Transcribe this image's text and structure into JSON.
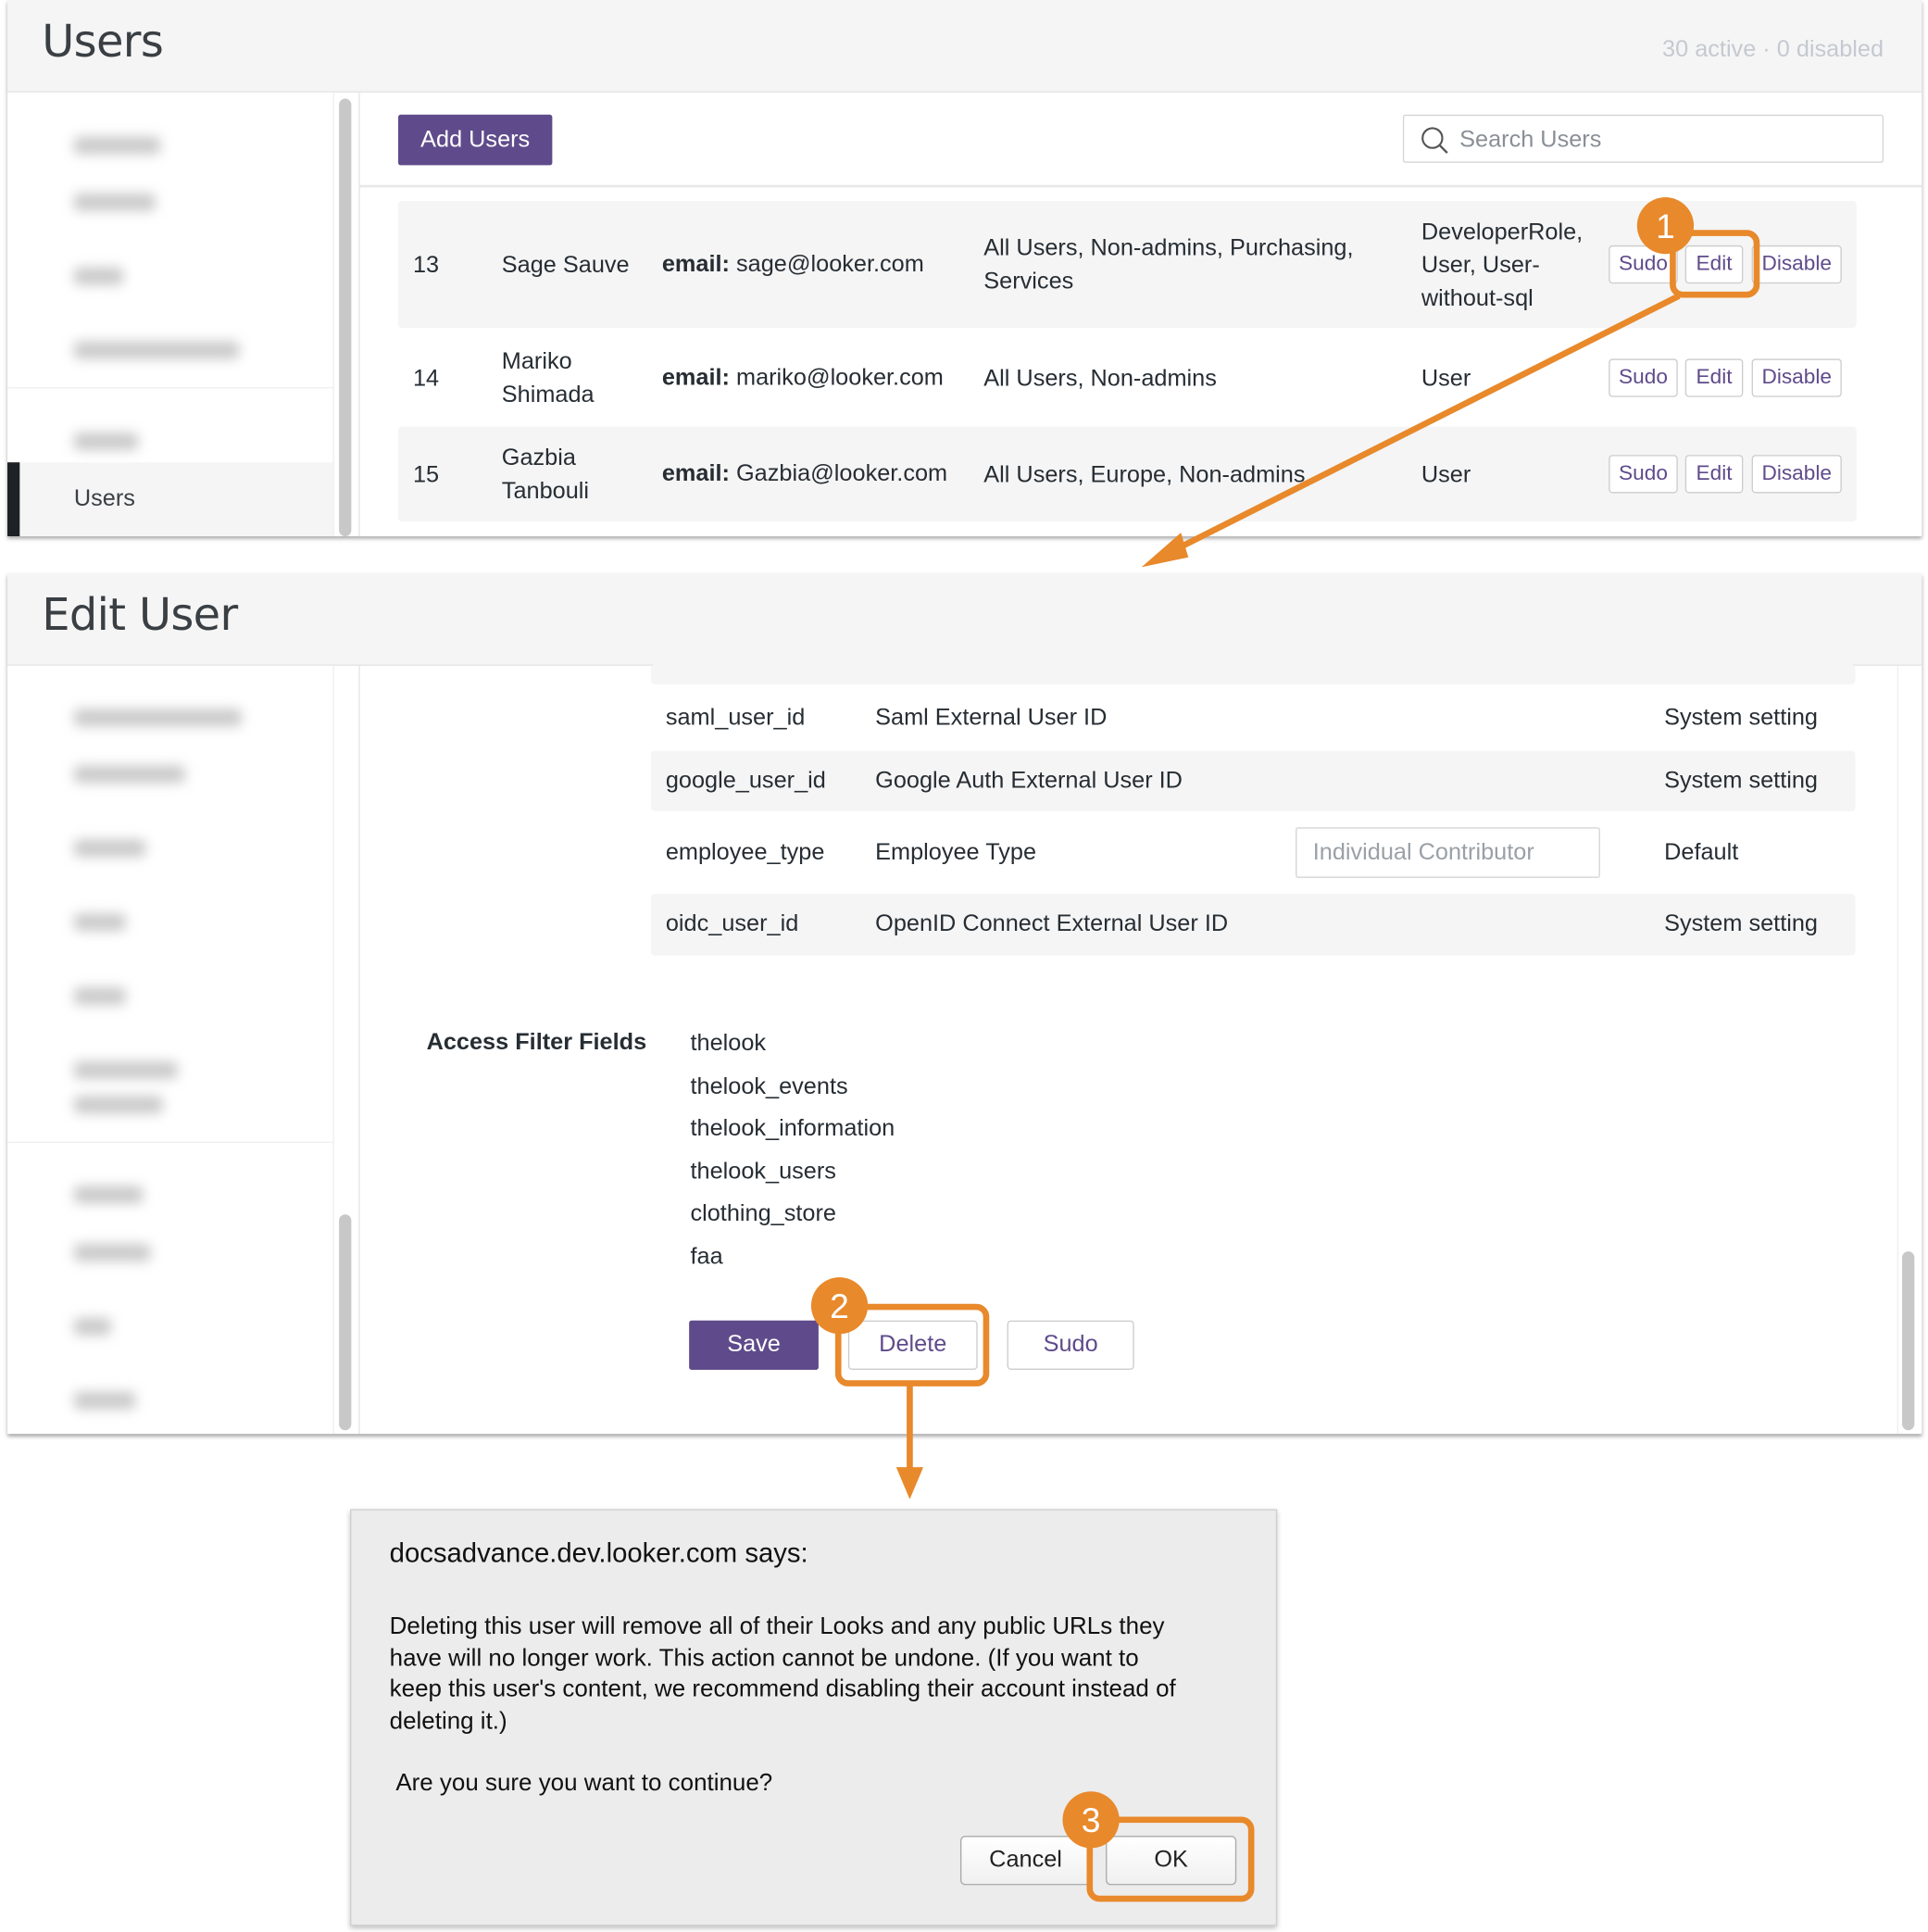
{
  "users_page": {
    "title": "Users",
    "status": "30 active · 0 disabled",
    "sidebar_active_item": "Users",
    "add_users_label": "Add Users",
    "search_placeholder": "Search Users",
    "rows": [
      {
        "id": "13",
        "name": "Sage Sauve",
        "email_label": "email:",
        "email": "sage@looker.com",
        "groups": "All Users, Non-admins, Purchasing, Services",
        "roles": "DeveloperRole, User, User-without-sql"
      },
      {
        "id": "14",
        "name": "Mariko Shimada",
        "email_label": "email:",
        "email": "mariko@looker.com",
        "groups": "All Users, Non-admins",
        "roles": "User"
      },
      {
        "id": "15",
        "name": "Gazbia Tanbouli",
        "email_label": "email:",
        "email": "Gazbia@looker.com",
        "groups": "All Users, Europe, Non-admins",
        "roles": "User"
      }
    ],
    "row_actions": {
      "sudo": "Sudo",
      "edit": "Edit",
      "disable": "Disable"
    }
  },
  "edit_user_page": {
    "title": "Edit User",
    "attributes": [
      {
        "name": "saml_user_id",
        "label": "Saml External User ID",
        "value": "",
        "source": "System setting"
      },
      {
        "name": "google_user_id",
        "label": "Google Auth External User ID",
        "value": "",
        "source": "System setting"
      },
      {
        "name": "employee_type",
        "label": "Employee Type",
        "value": "Individual Contributor",
        "source": "Default"
      },
      {
        "name": "oidc_user_id",
        "label": "OpenID Connect External User ID",
        "value": "",
        "source": "System setting"
      }
    ],
    "access_filter_label": "Access Filter Fields",
    "access_filter_fields": [
      "thelook",
      "thelook_events",
      "thelook_information",
      "thelook_users",
      "clothing_store",
      "faa"
    ],
    "save_label": "Save",
    "delete_label": "Delete",
    "sudo_label": "Sudo"
  },
  "dialog": {
    "title": "docsadvance.dev.looker.com says:",
    "message_lines": [
      "Deleting this user will remove all of their Looks and any public URLs they",
      "have will no longer work. This action cannot be undone. (If you want to",
      "keep this user's content, we recommend disabling their account instead of",
      "deleting it.)"
    ],
    "question": "Are you sure you want to continue?",
    "cancel_label": "Cancel",
    "ok_label": "OK"
  },
  "annotations": {
    "step1": "1",
    "step2": "2",
    "step3": "3",
    "color": "#e8892b"
  },
  "colors": {
    "brand_purple": "#5f4b8b",
    "header_bg": "#f5f5f5"
  }
}
